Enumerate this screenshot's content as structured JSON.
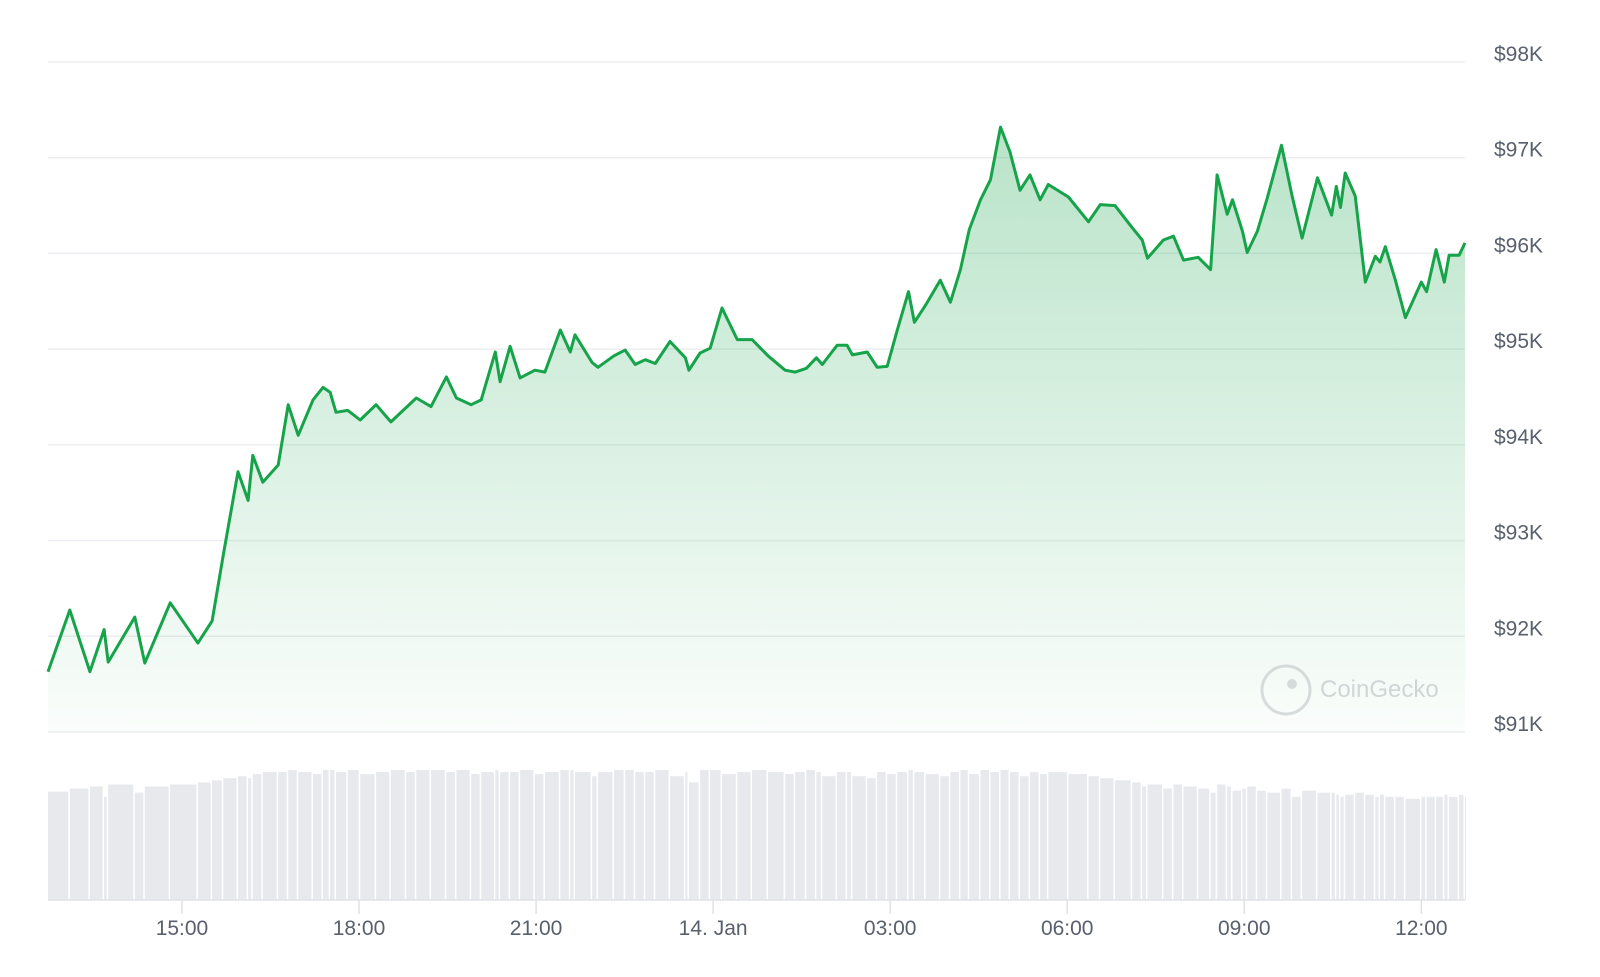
{
  "chart_data": {
    "type": "line",
    "color": "#16a34a",
    "volume_color": "#e7e9ed",
    "watermark": "CoinGecko",
    "grid": true,
    "xlim": [
      12.73,
      36.74
    ],
    "xticks": [
      {
        "value": 15,
        "label": "15:00"
      },
      {
        "value": 18,
        "label": "18:00"
      },
      {
        "value": 21,
        "label": "21:00"
      },
      {
        "value": 24,
        "label": "14. Jan"
      },
      {
        "value": 27,
        "label": "03:00"
      },
      {
        "value": 30,
        "label": "06:00"
      },
      {
        "value": 33,
        "label": "09:00"
      },
      {
        "value": 36,
        "label": "12:00"
      }
    ],
    "ylim": [
      91000,
      98000
    ],
    "yticks": [
      {
        "value": 91000,
        "label": "$91K"
      },
      {
        "value": 92000,
        "label": "$92K"
      },
      {
        "value": 93000,
        "label": "$93K"
      },
      {
        "value": 94000,
        "label": "$94K"
      },
      {
        "value": 95000,
        "label": "$95K"
      },
      {
        "value": 96000,
        "label": "$96K"
      },
      {
        "value": 97000,
        "label": "$97K"
      },
      {
        "value": 98000,
        "label": "$98K"
      }
    ],
    "x": [
      12.73,
      13.1,
      13.44,
      13.68,
      13.75,
      14.2,
      14.37,
      14.8,
      15.27,
      15.51,
      15.7,
      15.95,
      16.12,
      16.2,
      16.37,
      16.63,
      16.8,
      16.97,
      17.22,
      17.39,
      17.51,
      17.61,
      17.81,
      18.02,
      18.29,
      18.54,
      18.8,
      18.97,
      19.22,
      19.48,
      19.65,
      19.9,
      20.07,
      20.31,
      20.39,
      20.56,
      20.73,
      20.98,
      21.15,
      21.41,
      21.58,
      21.66,
      21.95,
      22.05,
      22.32,
      22.51,
      22.68,
      22.85,
      23.02,
      23.27,
      23.53,
      23.59,
      23.78,
      23.95,
      24.15,
      24.41,
      24.66,
      24.93,
      25.22,
      25.39,
      25.58,
      25.75,
      25.85,
      26.1,
      26.27,
      26.36,
      26.61,
      26.78,
      26.95,
      27.12,
      27.31,
      27.41,
      27.6,
      27.85,
      28.02,
      28.19,
      28.34,
      28.53,
      28.7,
      28.87,
      29.03,
      29.2,
      29.37,
      29.54,
      29.68,
      30.02,
      30.36,
      30.56,
      30.81,
      31.1,
      31.27,
      31.36,
      31.63,
      31.8,
      31.97,
      32.22,
      32.43,
      32.54,
      32.71,
      32.8,
      32.97,
      33.05,
      33.22,
      33.39,
      33.63,
      33.81,
      33.98,
      34.24,
      34.48,
      34.56,
      34.63,
      34.71,
      34.88,
      35.05,
      35.22,
      35.3,
      35.39,
      35.56,
      35.73,
      36.0,
      36.09,
      36.25,
      36.39,
      36.47,
      36.64,
      36.74
    ],
    "values": [
      91630,
      92275,
      91630,
      92070,
      91730,
      92200,
      91720,
      92350,
      91930,
      92160,
      92850,
      93720,
      93420,
      93890,
      93610,
      93790,
      94420,
      94100,
      94470,
      94600,
      94550,
      94340,
      94360,
      94260,
      94420,
      94240,
      94390,
      94490,
      94400,
      94710,
      94490,
      94420,
      94470,
      94970,
      94660,
      95030,
      94700,
      94780,
      94760,
      95200,
      94970,
      95150,
      94860,
      94810,
      94930,
      94990,
      94840,
      94890,
      94850,
      95080,
      94910,
      94780,
      94960,
      95010,
      95430,
      95100,
      95100,
      94930,
      94780,
      94760,
      94800,
      94910,
      94840,
      95040,
      95040,
      94940,
      94970,
      94810,
      94820,
      95200,
      95600,
      95280,
      95460,
      95720,
      95490,
      95830,
      96250,
      96560,
      96770,
      97320,
      97060,
      96660,
      96820,
      96560,
      96720,
      96590,
      96330,
      96510,
      96500,
      96270,
      96140,
      95950,
      96140,
      96180,
      95930,
      95960,
      95830,
      96820,
      96410,
      96560,
      96230,
      96010,
      96230,
      96580,
      97130,
      96600,
      96160,
      96790,
      96400,
      96700,
      96480,
      96840,
      96600,
      95700,
      95970,
      95910,
      96070,
      95720,
      95330,
      95700,
      95600,
      96040,
      95700,
      95980,
      95980,
      96110
    ],
    "volume": [
      105,
      108,
      110,
      100,
      112,
      104,
      110,
      112,
      114,
      116,
      118,
      120,
      118,
      122,
      124,
      124,
      126,
      124,
      122,
      126,
      126,
      124,
      126,
      122,
      124,
      126,
      124,
      126,
      126,
      124,
      126,
      122,
      124,
      126,
      124,
      124,
      126,
      122,
      124,
      126,
      126,
      124,
      120,
      124,
      126,
      126,
      124,
      124,
      126,
      120,
      124,
      114,
      126,
      126,
      122,
      124,
      126,
      124,
      122,
      124,
      126,
      124,
      120,
      124,
      124,
      120,
      118,
      124,
      122,
      124,
      126,
      124,
      122,
      120,
      124,
      126,
      122,
      126,
      124,
      126,
      124,
      120,
      124,
      122,
      124,
      122,
      120,
      118,
      116,
      114,
      110,
      112,
      108,
      112,
      110,
      108,
      104,
      112,
      110,
      106,
      108,
      110,
      106,
      104,
      108,
      100,
      106,
      104,
      104,
      102,
      100,
      102,
      104,
      102,
      100,
      102,
      100,
      100,
      98,
      100,
      100,
      100,
      102,
      100,
      102,
      100
    ]
  }
}
